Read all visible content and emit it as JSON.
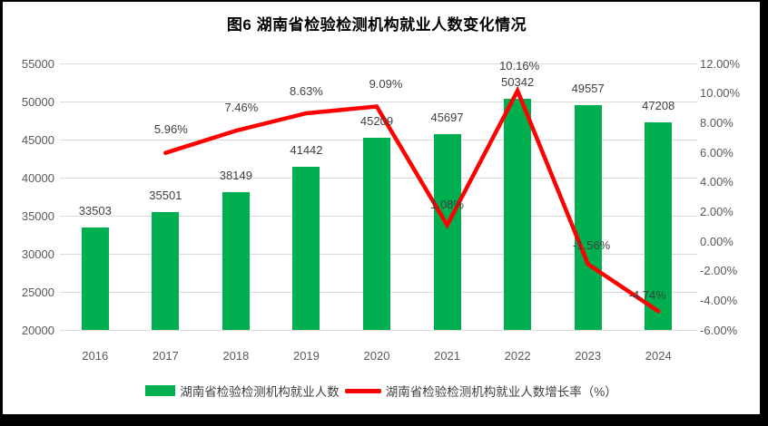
{
  "title": "图6 湖南省检验检测机构就业人数变化情况",
  "chart_data": {
    "type": "bar",
    "subtype": "bar-line-combo",
    "title": "图6 湖南省检验检测机构就业人数变化情况",
    "categories": [
      "2016",
      "2017",
      "2018",
      "2019",
      "2020",
      "2021",
      "2022",
      "2023",
      "2024"
    ],
    "series": [
      {
        "name": "湖南省检验检测机构就业人数",
        "chart": "bar",
        "axis": "left",
        "color": "#00B050",
        "values": [
          33503,
          35501,
          38149,
          41442,
          45209,
          45697,
          50342,
          49557,
          47208
        ],
        "labels": [
          "33503",
          "35501",
          "38149",
          "41442",
          "45209",
          "45697",
          "50342",
          "49557",
          "47208"
        ]
      },
      {
        "name": "湖南省检验检测机构就业人数增长率（%）",
        "chart": "line",
        "axis": "right",
        "color": "#FF0000",
        "values": [
          null,
          5.96,
          7.46,
          8.63,
          9.09,
          1.08,
          10.16,
          -1.56,
          -4.74
        ],
        "labels": [
          null,
          "5.96%",
          "7.46%",
          "8.63%",
          "9.09%",
          "1.08%",
          "10.16%",
          "-1.56%",
          "-4.74%"
        ]
      }
    ],
    "left_axis": {
      "min": 20000,
      "max": 55000,
      "step": 5000,
      "tick_labels": [
        "55000",
        "50000",
        "45000",
        "40000",
        "35000",
        "30000",
        "25000",
        "20000"
      ]
    },
    "right_axis": {
      "min": -6,
      "max": 12,
      "step": 2,
      "tick_labels": [
        "12.00%",
        "10.00%",
        "8.00%",
        "6.00%",
        "4.00%",
        "2.00%",
        "0.00%",
        "-2.00%",
        "-4.00%",
        "-6.00%"
      ]
    },
    "grid": true,
    "legend_position": "bottom"
  },
  "legend": {
    "items": [
      {
        "label": "湖南省检验检测机构就业人数",
        "swatch": "bar",
        "color": "#00B050"
      },
      {
        "label": "湖南省检验检测机构就业人数增长率（%）",
        "swatch": "line",
        "color": "#FF0000"
      }
    ]
  },
  "colors": {
    "bar": "#00B050",
    "line": "#FF0000",
    "grid": "#D9D9D9",
    "axis_text": "#595959",
    "label_text": "#404040",
    "title_text": "#000000",
    "frame": "#000000",
    "background": "#FFFFFF"
  }
}
